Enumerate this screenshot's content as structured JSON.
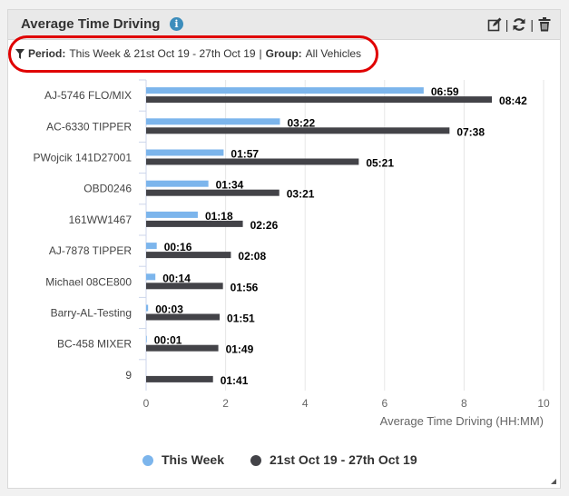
{
  "widget": {
    "title": "Average Time Driving",
    "info_icon": "info-circle-icon",
    "tools": [
      "edit-icon",
      "refresh-icon",
      "trash-icon"
    ]
  },
  "filter": {
    "period_label": "Period:",
    "period_value": "This Week & 21st Oct 19 - 27th Oct 19",
    "separator": "|",
    "group_label": "Group:",
    "group_value": "All Vehicles"
  },
  "chart_data": {
    "type": "bar",
    "orientation": "horizontal",
    "categories": [
      "AJ-5746 FLO/MIX",
      "AC-6330 TIPPER",
      "PWojcik 141D27001",
      "OBD0246",
      "161WW1467",
      "AJ-7878 TIPPER",
      "Michael 08CE800",
      "Barry-AL-Testing",
      "BC-458 MIXER",
      "9"
    ],
    "series": [
      {
        "name": "This Week",
        "color": "#7cb5ec",
        "values": [
          6.983,
          3.367,
          1.95,
          1.567,
          1.3,
          0.267,
          0.233,
          0.05,
          0.017,
          0
        ],
        "labels": [
          "06:59",
          "03:22",
          "01:57",
          "01:34",
          "01:18",
          "00:16",
          "00:14",
          "00:03",
          "00:01",
          ""
        ]
      },
      {
        "name": "21st Oct 19 - 27th Oct 19",
        "color": "#434348",
        "values": [
          8.7,
          7.633,
          5.35,
          3.35,
          2.433,
          2.133,
          1.933,
          1.85,
          1.817,
          1.683
        ],
        "labels": [
          "08:42",
          "07:38",
          "05:21",
          "03:21",
          "02:26",
          "02:08",
          "01:56",
          "01:51",
          "01:49",
          "01:41"
        ]
      }
    ],
    "xlabel": "Average Time Driving (HH:MM)",
    "xlim": [
      0,
      10
    ],
    "xticks": [
      "0",
      "2",
      "4",
      "6",
      "8",
      "10"
    ],
    "grid": true,
    "legend_position": "bottom"
  }
}
